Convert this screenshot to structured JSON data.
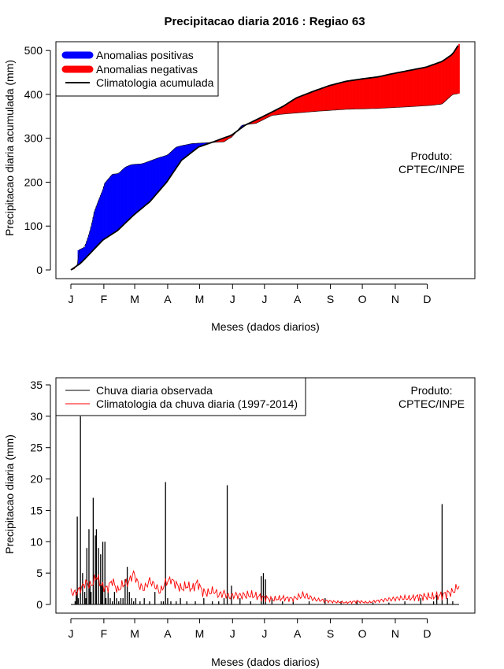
{
  "title": "Precipitacao diaria 2016 : Regiao 63",
  "months": [
    "J",
    "F",
    "M",
    "A",
    "M",
    "J",
    "J",
    "A",
    "S",
    "O",
    "N",
    "D"
  ],
  "chart_data": [
    {
      "type": "area",
      "name": "top-panel",
      "xlabel": "Meses (dados diarios)",
      "ylabel": "Precipitacao diaria acumulada (mm)",
      "xlim": [
        1,
        366
      ],
      "ylim": [
        0,
        520
      ],
      "yticks": [
        0,
        100,
        200,
        300,
        400,
        500
      ],
      "legend_position": "top-left",
      "legend": [
        {
          "label": "Anomalias positivas",
          "color": "#0000ff",
          "kind": "thick-line"
        },
        {
          "label": "Anomalias negativas",
          "color": "#ff0000",
          "kind": "thick-line"
        },
        {
          "label": "Climatologia acumulada",
          "color": "#000000",
          "kind": "line"
        }
      ],
      "note_lines": [
        "Produto:",
        "CPTEC/INPE"
      ],
      "observed_cumulative": {
        "day": [
          1,
          4,
          7,
          8,
          14,
          18,
          21,
          23,
          27,
          31,
          33,
          40,
          46,
          52,
          58,
          68,
          75,
          84,
          92,
          100,
          105,
          115,
          130,
          145,
          150,
          152,
          162,
          175,
          190,
          200,
          215,
          235,
          260,
          290,
          320,
          340,
          350,
          360,
          366
        ],
        "value": [
          0,
          2,
          12,
          45,
          52,
          80,
          108,
          132,
          158,
          182,
          198,
          218,
          220,
          234,
          240,
          242,
          248,
          256,
          262,
          280,
          283,
          288,
          290,
          292,
          300,
          302,
          330,
          334,
          352,
          355,
          358,
          362,
          366,
          368,
          372,
          375,
          378,
          400,
          402
        ]
      },
      "climatology_cumulative": {
        "day": [
          1,
          10,
          20,
          31,
          45,
          60,
          75,
          91,
          105,
          121,
          135,
          152,
          165,
          182,
          200,
          213,
          230,
          244,
          260,
          274,
          290,
          305,
          320,
          335,
          350,
          360,
          366
        ],
        "value": [
          0,
          15,
          40,
          68,
          90,
          125,
          155,
          200,
          250,
          280,
          292,
          307,
          330,
          350,
          372,
          392,
          408,
          420,
          430,
          435,
          440,
          448,
          455,
          462,
          475,
          492,
          515
        ]
      }
    },
    {
      "type": "bar",
      "name": "bottom-panel",
      "xlabel": "Meses (dados diarios)",
      "ylabel": "Precipitacao diaria (mm)",
      "xlim": [
        1,
        366
      ],
      "ylim": [
        0,
        35
      ],
      "yticks": [
        0,
        5,
        10,
        15,
        20,
        25,
        30,
        35
      ],
      "legend_position": "top-left",
      "legend": [
        {
          "label": "Chuva diaria observada",
          "color": "#000000",
          "kind": "line"
        },
        {
          "label": "Climatologia da chuva diaria (1997-2014)",
          "color": "#ff0000",
          "kind": "line"
        }
      ],
      "note_lines": [
        "Produto:",
        "CPTEC/INPE"
      ],
      "observed_daily": {
        "day": [
          5,
          6,
          7,
          8,
          10,
          12,
          14,
          15,
          16,
          18,
          19,
          20,
          22,
          24,
          25,
          27,
          29,
          30,
          31,
          33,
          34,
          36,
          38,
          40,
          42,
          44,
          46,
          48,
          50,
          52,
          54,
          56,
          58,
          60,
          62,
          66,
          70,
          75,
          80,
          86,
          88,
          90,
          92,
          95,
          100,
          104,
          110,
          118,
          126,
          134,
          140,
          145,
          148,
          152,
          160,
          170,
          180,
          182,
          184,
          190,
          200,
          210,
          225,
          240,
          255,
          270,
          285,
          300,
          315,
          330,
          342,
          345,
          350,
          355,
          360
        ],
        "value": [
          0.5,
          2,
          14,
          1,
          30,
          5,
          2,
          1,
          9,
          12,
          3,
          2,
          17,
          11,
          12,
          9,
          8,
          3,
          10,
          10,
          1,
          2,
          1,
          0.5,
          2,
          1,
          0.5,
          1,
          1,
          4,
          6,
          2,
          1,
          0.5,
          1,
          0.5,
          1,
          0.5,
          2,
          0.5,
          0.5,
          19.5,
          1,
          0.5,
          0.5,
          1,
          0.5,
          0.5,
          1,
          0.5,
          0.5,
          1,
          19,
          3,
          1,
          0.5,
          4.5,
          5,
          4,
          1,
          0.5,
          0.5,
          0.5,
          1,
          0.5,
          0.5,
          0.3,
          0.3,
          0.5,
          1,
          0.5,
          1.5,
          16,
          1,
          0.5
        ]
      },
      "climatology_daily": {
        "day": [
          1,
          5,
          10,
          15,
          20,
          25,
          30,
          35,
          40,
          45,
          50,
          55,
          60,
          65,
          70,
          75,
          80,
          85,
          90,
          95,
          100,
          105,
          110,
          115,
          120,
          125,
          130,
          135,
          140,
          145,
          150,
          155,
          160,
          170,
          180,
          190,
          200,
          210,
          220,
          230,
          240,
          250,
          260,
          270,
          280,
          290,
          300,
          310,
          320,
          330,
          340,
          350,
          360,
          366
        ],
        "value": [
          2.0,
          1.8,
          2.5,
          3.5,
          3.0,
          4.5,
          3.0,
          2.5,
          3.8,
          2.2,
          3.2,
          3.5,
          5.0,
          3.0,
          2.5,
          3.8,
          3.0,
          2.0,
          3.5,
          4.0,
          3.2,
          2.5,
          3.0,
          2.5,
          3.5,
          2.0,
          1.8,
          2.2,
          1.5,
          1.8,
          1.2,
          1.5,
          1.4,
          1.5,
          1.2,
          0.8,
          1.0,
          0.9,
          1.5,
          0.8,
          0.6,
          0.4,
          0.3,
          0.5,
          0.3,
          0.6,
          0.8,
          1.0,
          1.0,
          1.3,
          1.2,
          1.5,
          2.0,
          3.0
        ]
      }
    }
  ]
}
